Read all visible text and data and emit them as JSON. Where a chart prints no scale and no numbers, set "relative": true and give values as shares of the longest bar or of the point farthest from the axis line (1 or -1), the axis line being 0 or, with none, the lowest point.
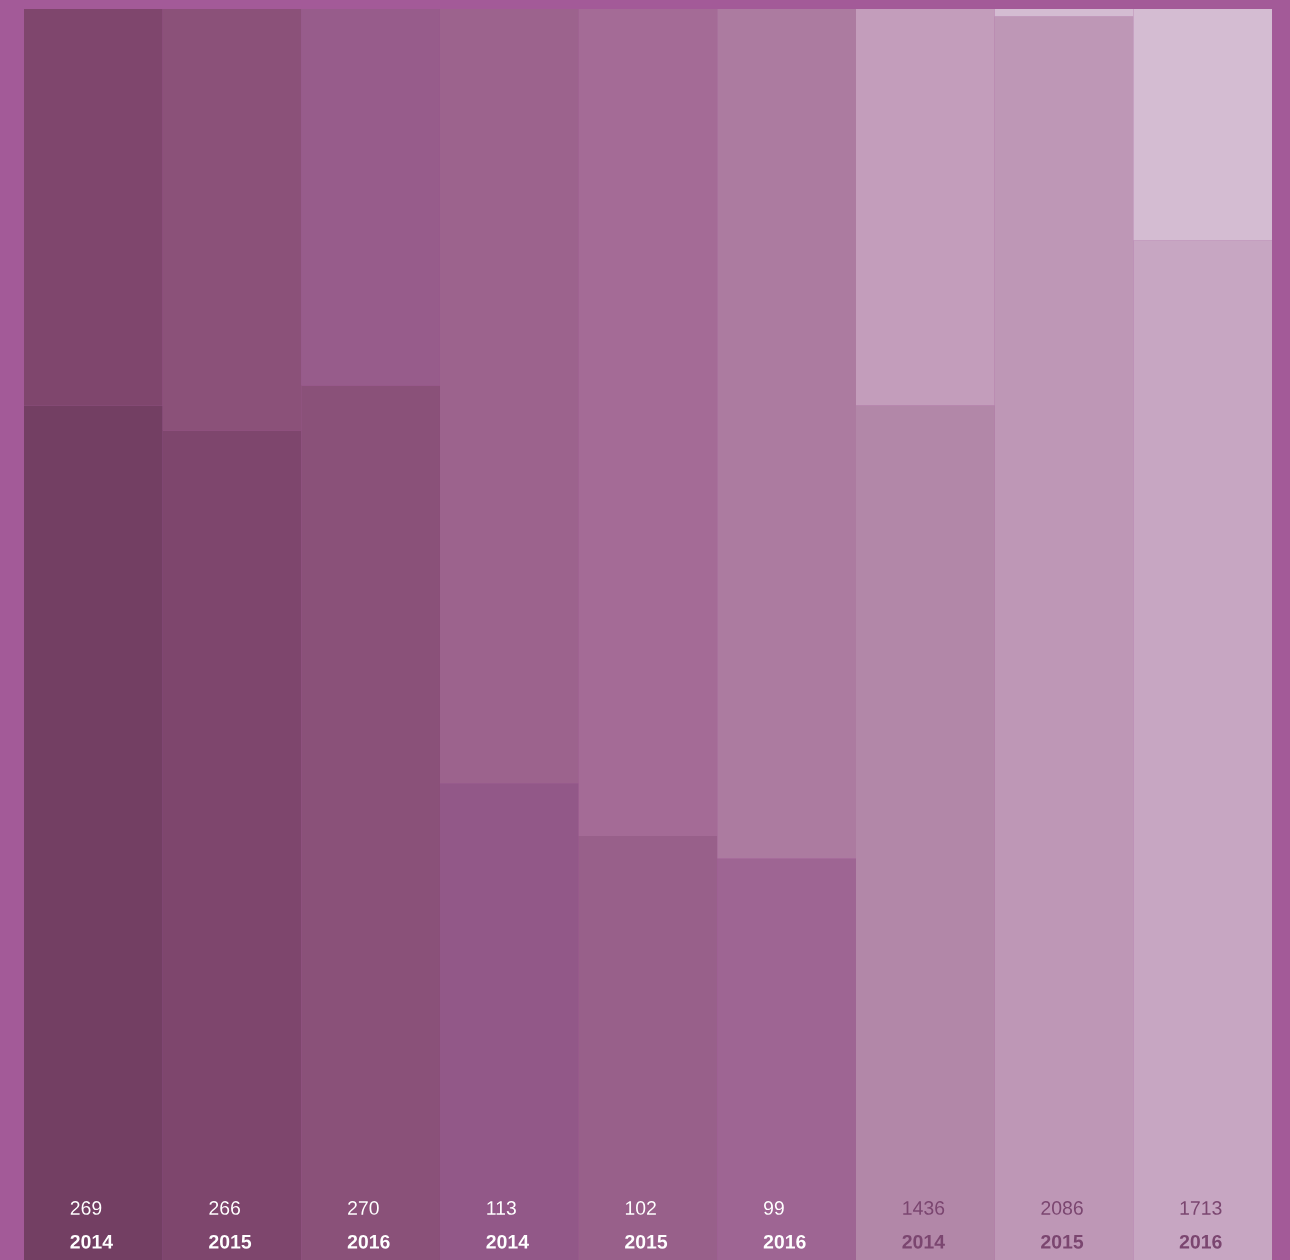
{
  "chart_data": {
    "type": "bar",
    "stacked": true,
    "relative": true,
    "categories": [
      "2014",
      "2015",
      "2016",
      "2014",
      "2015",
      "2016",
      "2014",
      "2015",
      "2016"
    ],
    "annotations": [
      "269",
      "266",
      "270",
      "113",
      "102",
      "99",
      "1436",
      "2086",
      "1713"
    ],
    "series": [
      {
        "colors": [
          "#733f63",
          "#7e466d",
          "#8a5179",
          "#925888",
          "#98608a",
          "#9e6593",
          "#b287a8",
          "#be97b6",
          "#c7a6c2"
        ],
        "values": [
          0.683,
          0.663,
          0.699,
          0.381,
          0.339,
          0.321,
          0.683,
          0.994,
          0.815
        ]
      },
      {
        "colors": [
          "#7f466d",
          "#8b5179",
          "#975c8b",
          "#9c638d",
          "#a46b96",
          "#ac7ba0",
          "#c39dbb",
          "#d4bcd2",
          "#d4bcd2"
        ],
        "values": [
          0.317,
          0.337,
          0.301,
          0.619,
          0.661,
          0.679,
          0.317,
          0.006,
          0.185
        ]
      }
    ]
  }
}
